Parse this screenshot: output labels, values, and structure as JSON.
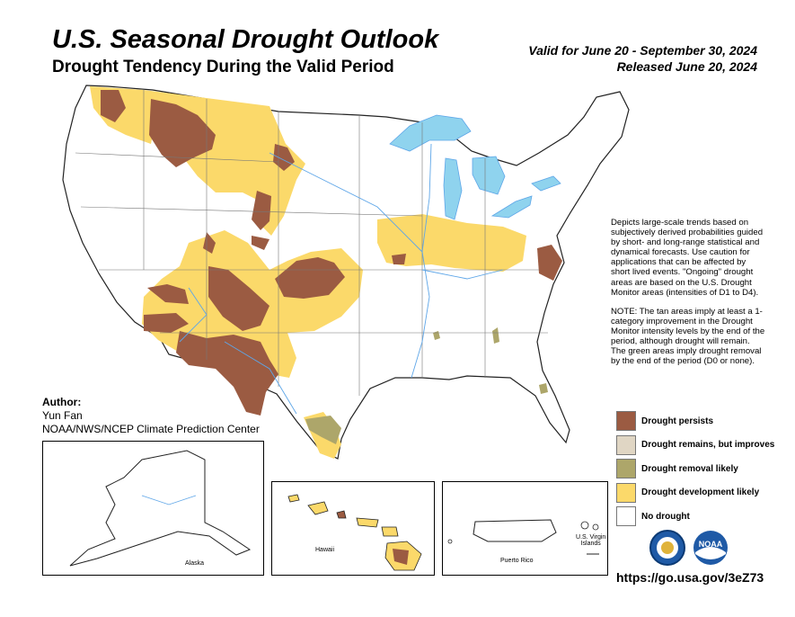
{
  "header": {
    "title": "U.S. Seasonal Drought Outlook",
    "subtitle": "Drought Tendency During the Valid Period",
    "valid": "Valid for June 20 - September 30, 2024",
    "released": "Released June 20, 2024"
  },
  "description": {
    "para1": "Depicts large-scale trends based on subjectively derived probabilities guided by short- and long-range statistical and dynamical forecasts. Use caution for applications that can be affected by short lived events. \"Ongoing\" drought areas are based on the U.S. Drought Monitor areas (intensities of D1 to D4).",
    "para2": "NOTE: The tan areas imply at least a 1-category improvement in the Drought Monitor intensity levels by the end of the period, although drought will remain. The green areas imply drought removal by the end of the period (D0 or none)."
  },
  "legend": [
    {
      "label": "Drought persists",
      "color": "#9B5B42"
    },
    {
      "label": "Drought remains, but improves",
      "color": "#E0D6C4"
    },
    {
      "label": "Drought removal likely",
      "color": "#ADA66A"
    },
    {
      "label": "Drought development likely",
      "color": "#FBD96A"
    },
    {
      "label": "No drought",
      "color": "#FFFFFF"
    }
  ],
  "author": {
    "label": "Author:",
    "name": "Yun Fan",
    "org": "NOAA/NWS/NCEP Climate Prediction Center"
  },
  "insets": {
    "alaska": "Alaska",
    "hawaii": "Hawaii",
    "puerto_rico": "Puerto Rico",
    "virgin_islands_line1": "U.S. Virgin",
    "virgin_islands_line2": "Islands"
  },
  "url": "https://go.usa.gov/3eZ73",
  "logos": {
    "doc": "doc-seal-icon",
    "noaa": "noaa-logo-icon",
    "noaa_text": "NOAA"
  },
  "colors": {
    "persist": "#9B5B42",
    "improve": "#E0D6C4",
    "removal": "#ADA66A",
    "development": "#FBD96A",
    "water": "#8FD3EE",
    "river": "#5EA6E8",
    "outline": "#222222",
    "state_line": "#777777"
  }
}
